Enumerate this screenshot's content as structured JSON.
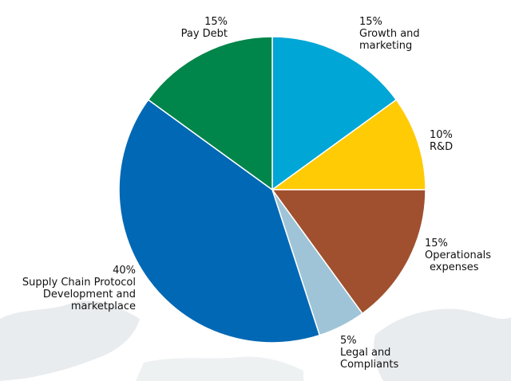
{
  "colors": {
    "growth": "#00A6D6",
    "rnd": "#FFCB05",
    "operational": "#A0502E",
    "legal": "#9FC4D8",
    "supply_chain": "#0068B5",
    "pay_debt": "#00854A",
    "slice_border": "#ffffff",
    "map_shading": "#E9ECEE"
  },
  "chart_data": {
    "type": "pie",
    "title": "",
    "slices": [
      {
        "label": "Growth and marketing",
        "percent_label": "15%",
        "value": 15,
        "color_key": "growth"
      },
      {
        "label": "R&D",
        "percent_label": "10%",
        "value": 10,
        "color_key": "rnd"
      },
      {
        "label": "Operationals expenses",
        "percent_label": "15%",
        "value": 15,
        "color_key": "operational"
      },
      {
        "label": "Legal and Compliants",
        "percent_label": "5%",
        "value": 5,
        "color_key": "legal"
      },
      {
        "label": "Supply Chain Protocol Development and marketplace",
        "percent_label": "40%",
        "value": 40,
        "color_key": "supply_chain"
      },
      {
        "label": "Pay Debt",
        "percent_label": "15%",
        "value": 15,
        "color_key": "pay_debt"
      }
    ],
    "start": "top, clockwise",
    "legend": "none (labels placed outside slices)"
  },
  "labels": {
    "growth": {
      "pct": "15%",
      "line1": "Growth and",
      "line2": "marketing"
    },
    "rnd": {
      "pct": "10%",
      "line1": "R&D"
    },
    "operational": {
      "pct": "15%",
      "line1": "Operationals",
      "line2": "expenses"
    },
    "legal": {
      "pct": "5%",
      "line1": "Legal and",
      "line2": "Compliants"
    },
    "supply_chain": {
      "pct": "40%",
      "line1": "Supply Chain Protocol",
      "line2": "Development and",
      "line3": "marketplace"
    },
    "pay_debt": {
      "pct": "15%",
      "line1": "Pay Debt"
    }
  }
}
